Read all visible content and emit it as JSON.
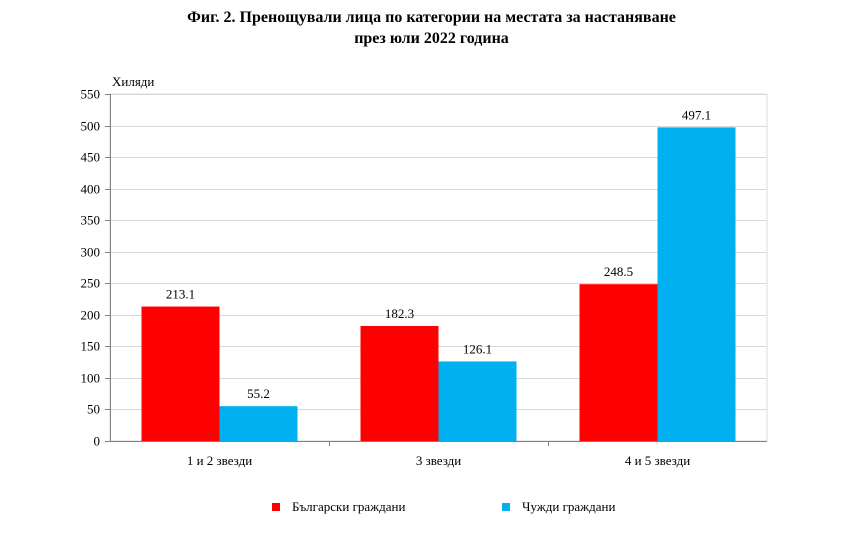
{
  "title": {
    "line1": "Фиг. 2. Пренощували лица по категории на местата за настаняване",
    "line2": "през юли 2022 година"
  },
  "chart_data": {
    "type": "bar",
    "title": "Фиг. 2. Пренощували лица по категории на местата за настаняване през юли 2022 година",
    "ylabel": "Хиляди",
    "xlabel": "",
    "ylim": [
      0,
      550
    ],
    "yticks": [
      0,
      50,
      100,
      150,
      200,
      250,
      300,
      350,
      400,
      450,
      500,
      550
    ],
    "grid": true,
    "legend_position": "bottom",
    "categories": [
      "1 и 2 звезди",
      "3 звезди",
      "4 и 5 звезди"
    ],
    "series": [
      {
        "name": "Български граждани",
        "color": "#ff0000",
        "values": [
          213.1,
          182.3,
          248.5
        ]
      },
      {
        "name": "Чужди граждани",
        "color": "#00b0f0",
        "values": [
          55.2,
          126.1,
          497.1
        ]
      }
    ]
  }
}
